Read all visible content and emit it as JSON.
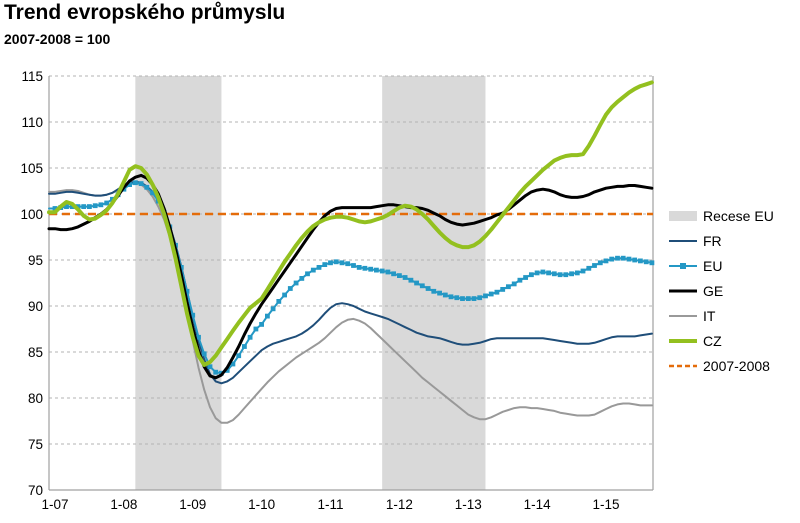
{
  "title": "Trend evropského průmyslu",
  "subtitle": "2007-2008 = 100",
  "chart_data": {
    "type": "line",
    "x_start": "2007-01",
    "x_frequency": "monthly",
    "x_tick_labels": [
      "1-07",
      "1-08",
      "1-09",
      "1-10",
      "1-11",
      "1-12",
      "1-13",
      "1-14",
      "1-15"
    ],
    "y_ticks": [
      70,
      75,
      80,
      85,
      90,
      95,
      100,
      105,
      110,
      115
    ],
    "ylim": [
      70,
      115
    ],
    "grid": "horizontal-dashed",
    "baseline": {
      "label": "2007-2008",
      "value": 100,
      "color": "#E46C0A",
      "style": "dashed"
    },
    "recessions": {
      "label": "Recese EU",
      "color": "#D9D9D9",
      "periods": [
        {
          "from": "2008-03",
          "to": "2009-06"
        },
        {
          "from": "2011-10",
          "to": "2013-04"
        }
      ]
    },
    "series": [
      {
        "name": "IT",
        "color": "#999999",
        "width": 2,
        "marker": "none",
        "values": [
          102.4,
          102.5,
          102.6,
          102.6,
          102.5,
          102.3,
          102.1,
          102.0,
          102.0,
          102.1,
          102.3,
          102.6,
          103.0,
          103.3,
          103.4,
          103.2,
          102.7,
          101.9,
          100.8,
          99.4,
          97.5,
          95.1,
          92.3,
          89.3,
          86.2,
          83.3,
          80.9,
          79.0,
          77.8,
          77.3,
          77.3,
          77.6,
          78.2,
          78.9,
          79.6,
          80.3,
          81.0,
          81.7,
          82.3,
          82.9,
          83.4,
          83.9,
          84.4,
          84.8,
          85.2,
          85.6,
          86.0,
          86.5,
          87.1,
          87.7,
          88.2,
          88.5,
          88.6,
          88.4,
          88.1,
          87.6,
          87.0,
          86.4,
          85.8,
          85.2,
          84.6,
          84.0,
          83.4,
          82.8,
          82.2,
          81.7,
          81.2,
          80.7,
          80.2,
          79.7,
          79.2,
          78.7,
          78.2,
          77.9,
          77.7,
          77.7,
          77.9,
          78.2,
          78.5,
          78.7,
          78.9,
          79.0,
          79.0,
          78.9,
          78.9,
          78.8,
          78.7,
          78.6,
          78.4,
          78.3,
          78.2,
          78.1,
          78.1,
          78.1,
          78.2,
          78.5,
          78.8,
          79.1,
          79.3,
          79.4,
          79.4,
          79.3,
          79.2,
          79.2,
          79.2
        ]
      },
      {
        "name": "FR",
        "color": "#1F4E79",
        "width": 2,
        "marker": "none",
        "values": [
          102.2,
          102.3,
          102.4,
          102.4,
          102.3,
          102.2,
          102.1,
          102.0,
          102.0,
          102.1,
          102.3,
          102.7,
          103.1,
          103.4,
          103.5,
          103.4,
          103.0,
          102.4,
          101.5,
          100.3,
          98.7,
          96.7,
          94.3,
          91.6,
          88.8,
          86.2,
          84.2,
          82.6,
          81.8,
          81.6,
          81.8,
          82.2,
          82.8,
          83.4,
          84.0,
          84.6,
          85.2,
          85.6,
          85.9,
          86.1,
          86.3,
          86.5,
          86.7,
          87.0,
          87.4,
          87.9,
          88.5,
          89.2,
          89.8,
          90.2,
          90.3,
          90.2,
          90.0,
          89.7,
          89.4,
          89.2,
          89.0,
          88.8,
          88.6,
          88.3,
          88.0,
          87.7,
          87.4,
          87.1,
          86.9,
          86.7,
          86.6,
          86.5,
          86.3,
          86.1,
          85.9,
          85.8,
          85.8,
          85.9,
          86.0,
          86.2,
          86.4,
          86.5,
          86.5,
          86.5,
          86.5,
          86.5,
          86.5,
          86.5,
          86.5,
          86.5,
          86.4,
          86.3,
          86.2,
          86.1,
          86.0,
          85.9,
          85.9,
          85.9,
          86.0,
          86.2,
          86.4,
          86.6,
          86.7,
          86.7,
          86.7,
          86.7,
          86.8,
          86.9,
          87.0
        ]
      },
      {
        "name": "EU",
        "color": "#2498C5",
        "width": 2,
        "marker": "square",
        "values": [
          100.6,
          100.7,
          100.8,
          100.8,
          100.8,
          100.8,
          100.8,
          100.9,
          101.0,
          101.2,
          101.6,
          102.1,
          102.7,
          103.2,
          103.4,
          103.3,
          102.9,
          102.3,
          101.4,
          100.2,
          98.6,
          96.6,
          94.2,
          91.6,
          89.0,
          86.6,
          84.8,
          83.4,
          82.8,
          82.7,
          83.0,
          83.7,
          84.6,
          85.6,
          86.6,
          87.5,
          88.0,
          88.9,
          89.7,
          90.5,
          91.2,
          91.9,
          92.5,
          93.0,
          93.5,
          93.9,
          94.2,
          94.5,
          94.7,
          94.8,
          94.7,
          94.6,
          94.4,
          94.2,
          94.1,
          94.0,
          93.9,
          93.8,
          93.7,
          93.5,
          93.3,
          93.1,
          92.8,
          92.5,
          92.2,
          91.9,
          91.6,
          91.4,
          91.2,
          91.0,
          90.9,
          90.8,
          90.8,
          90.8,
          90.9,
          91.1,
          91.3,
          91.5,
          91.8,
          92.1,
          92.4,
          92.8,
          93.1,
          93.4,
          93.6,
          93.7,
          93.6,
          93.5,
          93.4,
          93.4,
          93.5,
          93.6,
          93.8,
          94.1,
          94.4,
          94.7,
          94.9,
          95.1,
          95.2,
          95.2,
          95.1,
          95.0,
          94.9,
          94.8,
          94.7
        ]
      },
      {
        "name": "GE",
        "color": "#000000",
        "width": 3,
        "marker": "none",
        "values": [
          98.4,
          98.3,
          98.3,
          98.4,
          98.6,
          98.9,
          99.2,
          99.6,
          100.0,
          100.5,
          101.2,
          102.0,
          102.9,
          103.6,
          104.0,
          104.2,
          103.9,
          103.2,
          102.2,
          100.6,
          98.6,
          96.2,
          93.4,
          90.4,
          87.6,
          85.2,
          83.4,
          82.4,
          82.2,
          82.5,
          83.3,
          84.4,
          85.6,
          86.9,
          88.1,
          89.2,
          90.2,
          91.1,
          92.0,
          92.9,
          93.8,
          94.7,
          95.6,
          96.5,
          97.4,
          98.3,
          99.1,
          99.8,
          100.3,
          100.6,
          100.7,
          100.7,
          100.7,
          100.7,
          100.7,
          100.7,
          100.8,
          100.9,
          101.0,
          101.0,
          100.9,
          100.8,
          100.7,
          100.7,
          100.6,
          100.4,
          100.1,
          99.8,
          99.4,
          99.1,
          98.9,
          98.8,
          98.9,
          99.0,
          99.2,
          99.4,
          99.6,
          99.9,
          100.1,
          100.5,
          101.0,
          101.5,
          102.0,
          102.4,
          102.6,
          102.7,
          102.6,
          102.4,
          102.1,
          101.9,
          101.8,
          101.8,
          101.9,
          102.1,
          102.4,
          102.6,
          102.8,
          102.9,
          103.0,
          103.0,
          103.1,
          103.1,
          103.0,
          102.9,
          102.8
        ]
      },
      {
        "name": "CZ",
        "color": "#93C01F",
        "width": 4,
        "marker": "none",
        "values": [
          100.2,
          100.8,
          101.3,
          101.1,
          100.5,
          99.8,
          99.4,
          99.5,
          99.9,
          100.4,
          101.2,
          102.2,
          103.5,
          104.8,
          105.2,
          105.0,
          104.3,
          103.2,
          101.8,
          100.0,
          97.8,
          95.2,
          92.2,
          89.2,
          86.6,
          84.6,
          83.6,
          83.9,
          84.6,
          85.5,
          86.4,
          87.3,
          88.2,
          89.0,
          89.8,
          90.3,
          90.8,
          91.8,
          92.8,
          93.8,
          94.8,
          95.7,
          96.6,
          97.4,
          98.1,
          98.7,
          99.1,
          99.4,
          99.6,
          99.7,
          99.7,
          99.6,
          99.4,
          99.2,
          99.1,
          99.2,
          99.4,
          99.6,
          99.9,
          100.3,
          100.7,
          100.9,
          100.8,
          100.5,
          100.0,
          99.4,
          98.7,
          98.0,
          97.4,
          96.9,
          96.6,
          96.4,
          96.4,
          96.6,
          97.0,
          97.6,
          98.3,
          99.1,
          99.9,
          100.7,
          101.5,
          102.3,
          103.0,
          103.6,
          104.2,
          104.8,
          105.3,
          105.8,
          106.1,
          106.3,
          106.4,
          106.4,
          106.5,
          107.4,
          108.5,
          109.7,
          110.8,
          111.6,
          112.2,
          112.7,
          113.2,
          113.6,
          113.9,
          114.1,
          114.3
        ]
      }
    ],
    "legend": [
      {
        "label": "Recese EU",
        "swatch": "band",
        "color": "#D9D9D9"
      },
      {
        "label": "FR",
        "swatch": "line",
        "color": "#1F4E79",
        "width": 2
      },
      {
        "label": "EU",
        "swatch": "line-marker",
        "color": "#2498C5",
        "width": 2
      },
      {
        "label": "GE",
        "swatch": "line",
        "color": "#000000",
        "width": 3
      },
      {
        "label": "IT",
        "swatch": "line",
        "color": "#999999",
        "width": 2
      },
      {
        "label": "CZ",
        "swatch": "line",
        "color": "#93C01F",
        "width": 4
      },
      {
        "label": "2007-2008",
        "swatch": "dashed-line",
        "color": "#E46C0A",
        "width": 2.5
      }
    ],
    "colors": {
      "grid": "#B3B3B3",
      "plot_border": "#A0A0A0",
      "axis_text": "#000000"
    }
  }
}
